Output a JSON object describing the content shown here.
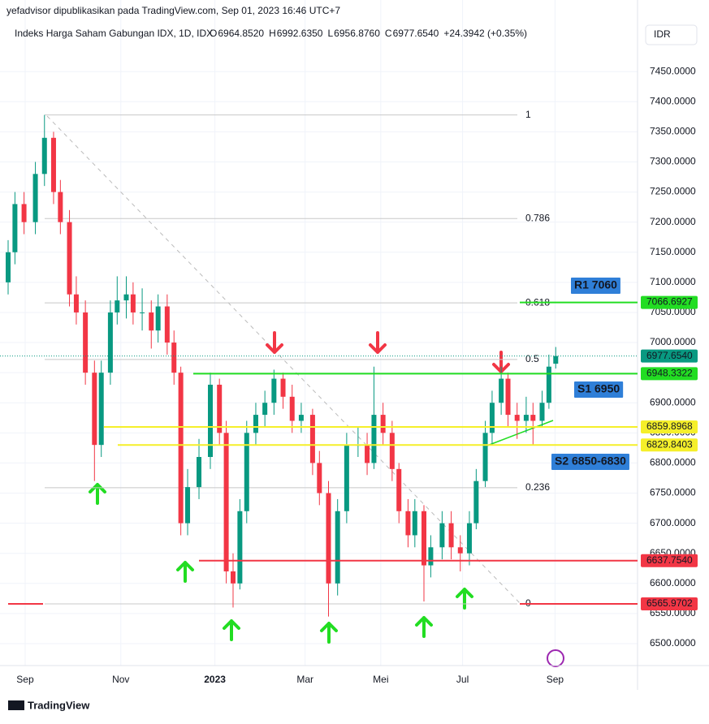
{
  "header": {
    "publisher": "yefadvisor dipublikasikan pada TradingView.com, Sep 01, 2023 16:46 UTC+7",
    "symbol": "Indeks Harga Saham Gabungan IDX, 1D, IDX",
    "ohlc": [
      {
        "key": "O",
        "value": "6964.8520"
      },
      {
        "key": "H",
        "value": "6992.6350"
      },
      {
        "key": "L",
        "value": "6956.8760"
      },
      {
        "key": "C",
        "value": "6977.6540"
      }
    ],
    "change": "+24.3942 (+0.35%)",
    "currency": "IDR"
  },
  "footer": {
    "brand": "TradingView"
  },
  "chart_data": {
    "type": "candlestick",
    "up_color": "#089981",
    "down_color": "#f23645",
    "grid": true,
    "xlim": [
      0,
      277
    ],
    "ylim": [
      6463.6,
      7488
    ],
    "xticks": [
      {
        "value": 7.5,
        "label": "Sep"
      },
      {
        "value": 49.6,
        "label": "Nov"
      },
      {
        "value": 91,
        "label": "2023"
      },
      {
        "value": 130.7,
        "label": "Mar"
      },
      {
        "value": 164,
        "label": "Mei"
      },
      {
        "value": 200,
        "label": "Jul"
      },
      {
        "value": 240.7,
        "label": "Sep"
      }
    ],
    "yticks": [
      {
        "value": 6500,
        "label": "6500.0000"
      },
      {
        "value": 6550,
        "label": "6550.0000"
      },
      {
        "value": 6600,
        "label": "6600.0000"
      },
      {
        "value": 6650,
        "label": "6650.0000"
      },
      {
        "value": 6700,
        "label": "6700.0000"
      },
      {
        "value": 6750,
        "label": "6750.0000"
      },
      {
        "value": 6800,
        "label": "6800.0000"
      },
      {
        "value": 6850,
        "label": "6850.0000"
      },
      {
        "value": 6900,
        "label": "6900.0000"
      },
      {
        "value": 6950,
        "label": "6950.0000"
      },
      {
        "value": 7000,
        "label": "7000.0000"
      },
      {
        "value": 7050,
        "label": "7050.0000"
      },
      {
        "value": 7100,
        "label": "7100.0000"
      },
      {
        "value": 7150,
        "label": "7150.0000"
      },
      {
        "value": 7200,
        "label": "7200.0000"
      },
      {
        "value": 7250,
        "label": "7250.0000"
      },
      {
        "value": 7300,
        "label": "7300.0000"
      },
      {
        "value": 7350,
        "label": "7350.0000"
      },
      {
        "value": 7400,
        "label": "7400.0000"
      },
      {
        "value": 7450,
        "label": "7450.0000"
      }
    ],
    "candles": [
      [
        0,
        7100,
        7170,
        7080,
        7150
      ],
      [
        3,
        7150,
        7250,
        7130,
        7230
      ],
      [
        7,
        7230,
        7250,
        7180,
        7200
      ],
      [
        12,
        7200,
        7300,
        7180,
        7280
      ],
      [
        16,
        7280,
        7378,
        7260,
        7340
      ],
      [
        20,
        7340,
        7350,
        7230,
        7250
      ],
      [
        23,
        7250,
        7270,
        7180,
        7200
      ],
      [
        27,
        7200,
        7220,
        7060,
        7080
      ],
      [
        30,
        7080,
        7110,
        7030,
        7050
      ],
      [
        34,
        7050,
        7070,
        6930,
        6950
      ],
      [
        38,
        6950,
        6970,
        6770,
        6830
      ],
      [
        41,
        6830,
        6970,
        6810,
        6950
      ],
      [
        45,
        6950,
        7070,
        6930,
        7050
      ],
      [
        48,
        7050,
        7110,
        7030,
        7070
      ],
      [
        52,
        7070,
        7110,
        7040,
        7080
      ],
      [
        55,
        7080,
        7100,
        7030,
        7050
      ],
      [
        59,
        7050,
        7090,
        7020,
        7050
      ],
      [
        63,
        7050,
        7070,
        6990,
        7020
      ],
      [
        66,
        7020,
        7080,
        7000,
        7060
      ],
      [
        70,
        7060,
        7080,
        6980,
        7000
      ],
      [
        73,
        7000,
        7020,
        6930,
        6950
      ],
      [
        76,
        6950,
        6960,
        6680,
        6700
      ],
      [
        79,
        6700,
        6790,
        6680,
        6760
      ],
      [
        84,
        6760,
        6840,
        6740,
        6810
      ],
      [
        89,
        6810,
        6950,
        6790,
        6930
      ],
      [
        93,
        6930,
        6940,
        6830,
        6850
      ],
      [
        96,
        6850,
        6870,
        6600,
        6620
      ],
      [
        99,
        6620,
        6650,
        6560,
        6600
      ],
      [
        102,
        6600,
        6740,
        6590,
        6720
      ],
      [
        105,
        6720,
        6870,
        6700,
        6850
      ],
      [
        109,
        6850,
        6900,
        6830,
        6880
      ],
      [
        113,
        6880,
        6920,
        6860,
        6900
      ],
      [
        117,
        6900,
        6955,
        6880,
        6940
      ],
      [
        121,
        6940,
        6950,
        6890,
        6910
      ],
      [
        125,
        6910,
        6930,
        6850,
        6870
      ],
      [
        129,
        6870,
        6900,
        6850,
        6880
      ],
      [
        134,
        6880,
        6890,
        6780,
        6800
      ],
      [
        137,
        6800,
        6820,
        6730,
        6750
      ],
      [
        141,
        6750,
        6770,
        6545,
        6600
      ],
      [
        145,
        6600,
        6740,
        6580,
        6720
      ],
      [
        149,
        6720,
        6850,
        6700,
        6830
      ],
      [
        154,
        6830,
        6860,
        6810,
        6830
      ],
      [
        158,
        6830,
        6850,
        6780,
        6800
      ],
      [
        161,
        6800,
        6960,
        6790,
        6880
      ],
      [
        165,
        6880,
        6900,
        6830,
        6850
      ],
      [
        169,
        6850,
        6870,
        6770,
        6790
      ],
      [
        172,
        6790,
        6800,
        6700,
        6720
      ],
      [
        176,
        6720,
        6740,
        6660,
        6680
      ],
      [
        179,
        6680,
        6740,
        6660,
        6720
      ],
      [
        183,
        6720,
        6730,
        6570,
        6630
      ],
      [
        186,
        6630,
        6680,
        6610,
        6660
      ],
      [
        191,
        6660,
        6720,
        6640,
        6700
      ],
      [
        195,
        6700,
        6720,
        6640,
        6660
      ],
      [
        199,
        6660,
        6680,
        6620,
        6650
      ],
      [
        203,
        6650,
        6720,
        6630,
        6700
      ],
      [
        206,
        6700,
        6790,
        6690,
        6770
      ],
      [
        210,
        6770,
        6870,
        6760,
        6850
      ],
      [
        213,
        6850,
        6920,
        6830,
        6900
      ],
      [
        217,
        6900,
        6960,
        6880,
        6940
      ],
      [
        220,
        6940,
        6950,
        6860,
        6880
      ],
      [
        224,
        6880,
        6900,
        6840,
        6870
      ],
      [
        228,
        6870,
        6910,
        6850,
        6880
      ],
      [
        231,
        6880,
        6900,
        6830,
        6870
      ],
      [
        235,
        6870,
        6920,
        6860,
        6900
      ],
      [
        238,
        6900,
        6980,
        6890,
        6960
      ],
      [
        241,
        6964.852,
        6992.635,
        6956.876,
        6977.654
      ]
    ],
    "fib_levels": [
      {
        "value": 7378,
        "label": "1"
      },
      {
        "value": 7206,
        "label": "0.786"
      },
      {
        "value": 7066,
        "label": "0.618"
      },
      {
        "value": 6972,
        "label": "0.5"
      },
      {
        "value": 6759,
        "label": "0.236"
      },
      {
        "value": 6566,
        "label": "0"
      }
    ],
    "levels": [
      {
        "value": 7066.6927,
        "label": "7066.6927",
        "color": "#22dd22"
      },
      {
        "value": 6948.3322,
        "label": "6948.3322",
        "color": "#22dd22"
      },
      {
        "value": 6859.8968,
        "label": "6859.8968",
        "color": "#f5ef2a"
      },
      {
        "value": 6829.8403,
        "label": "6829.8403",
        "color": "#f5ef2a"
      },
      {
        "value": 6637.754,
        "label": "6637.7540",
        "color": "#f23645"
      },
      {
        "value": 6565.9702,
        "label": "6565.9702",
        "color": "#f23645"
      }
    ],
    "last_price": {
      "value": 6977.654,
      "label": "6977.6540",
      "color": "#089981"
    },
    "annotations": [
      "R1 7060",
      "S1 6950",
      "S2 6850-6830"
    ]
  }
}
